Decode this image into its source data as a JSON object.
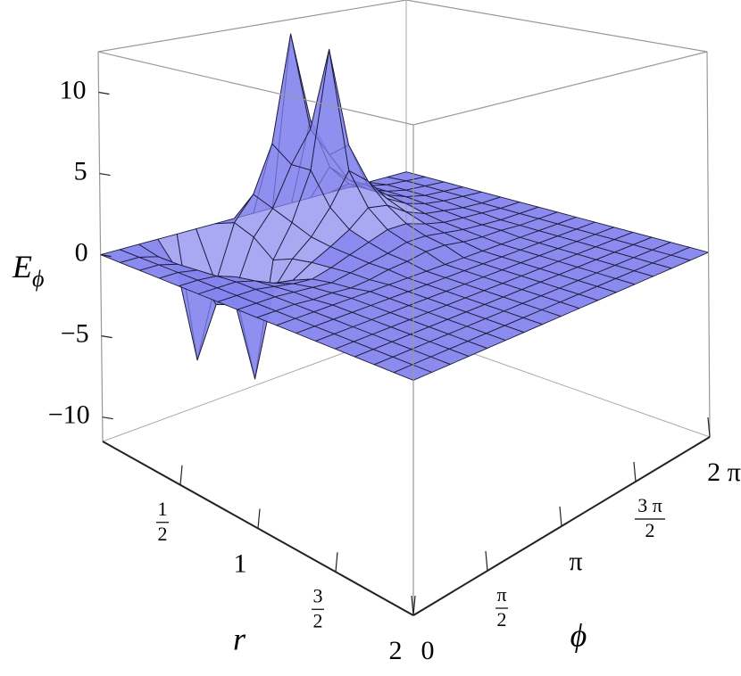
{
  "chart_data": {
    "type": "surface3d",
    "color": "#8585ee",
    "xlabel": "r",
    "ylabel": "ϕ",
    "zlabel": "Eϕ",
    "xlim": [
      0,
      2
    ],
    "ylim": [
      0,
      6.2832
    ],
    "zlim": [
      -11.5,
      12.5
    ],
    "xticks": [
      {
        "value": 0.5,
        "label": "1/2"
      },
      1,
      {
        "value": 1.5,
        "label": "3/2"
      },
      2
    ],
    "yticks": [
      0,
      {
        "value": 1.5708,
        "label": "π/2"
      },
      {
        "value": 3.1416,
        "label": "π"
      },
      {
        "value": 4.7124,
        "label": "3 π/2"
      },
      {
        "value": 6.2832,
        "label": "2 π"
      }
    ],
    "zticks": [
      {
        "value": -10,
        "label": "−10"
      },
      {
        "value": -5,
        "label": "−5"
      },
      0,
      5,
      10
    ],
    "x": [
      0,
      0.125,
      0.25,
      0.375,
      0.5,
      0.625,
      0.75,
      0.875,
      1,
      1.125,
      1.25,
      1.375,
      1.5,
      1.625,
      1.75,
      1.875,
      2
    ],
    "y": [
      0,
      0.3927,
      0.7854,
      1.1781,
      1.5708,
      1.9635,
      2.3562,
      2.7489,
      3.1416,
      3.5343,
      3.927,
      4.3197,
      4.7124,
      5.1051,
      5.4978,
      5.8905,
      6.2832
    ],
    "z": [
      [
        0,
        0,
        0,
        0,
        0,
        0,
        0,
        0,
        0,
        0,
        0,
        0,
        0,
        0,
        0,
        0,
        0
      ],
      [
        0,
        0,
        -0.3,
        -1.5,
        -7.5,
        -3,
        0.5,
        2,
        5,
        12,
        6,
        2.5,
        1,
        0.5,
        0.2,
        0.1,
        0
      ],
      [
        0,
        0,
        -0.3,
        -1.2,
        -3.5,
        -3,
        0,
        1.5,
        4,
        6,
        4,
        2,
        1,
        0.5,
        0.2,
        0.1,
        0
      ],
      [
        0,
        0,
        -0.2,
        -1,
        -3,
        -8,
        -1,
        1,
        4,
        11.5,
        5,
        2,
        1,
        0.5,
        0.2,
        0.1,
        0
      ],
      [
        0,
        0,
        -0.1,
        -0.5,
        -1.5,
        -2,
        -0.5,
        0.5,
        2,
        4,
        3,
        1.5,
        0.8,
        0.4,
        0.2,
        0.1,
        0
      ],
      [
        0,
        0,
        0,
        -0.3,
        -0.8,
        -1,
        -0.3,
        0.3,
        1,
        2,
        1.8,
        1,
        0.5,
        0.3,
        0.1,
        0,
        0
      ],
      [
        0,
        0,
        0,
        -0.2,
        -0.4,
        -0.5,
        -0.2,
        0.2,
        0.6,
        1,
        1,
        0.6,
        0.3,
        0.2,
        0.1,
        0,
        0
      ],
      [
        0,
        0,
        0,
        -0.1,
        -0.2,
        -0.3,
        -0.1,
        0.1,
        0.3,
        0.6,
        0.6,
        0.4,
        0.2,
        0.1,
        0,
        0,
        0
      ],
      [
        0,
        0,
        0,
        -0.1,
        -0.1,
        -0.2,
        -0.1,
        0.1,
        0.2,
        0.4,
        0.4,
        0.2,
        0.1,
        0.1,
        0,
        0,
        0
      ],
      [
        0,
        0,
        0,
        0,
        0,
        0,
        0,
        0,
        0,
        0,
        0,
        0,
        0,
        0,
        0,
        0,
        0
      ],
      [
        0,
        0,
        0,
        0,
        0,
        0,
        0,
        0,
        0,
        0,
        0,
        0,
        0,
        0,
        0,
        0,
        0
      ],
      [
        0,
        0,
        0,
        0,
        0,
        0,
        0,
        0,
        0,
        0,
        0,
        0,
        0,
        0,
        0,
        0,
        0
      ],
      [
        0,
        0,
        0,
        0,
        0,
        0,
        0,
        0,
        0,
        0,
        0,
        0,
        0,
        0,
        0,
        0,
        0
      ],
      [
        0,
        0,
        0,
        0,
        0,
        0,
        0,
        0,
        0,
        0,
        0,
        0,
        0,
        0,
        0,
        0,
        0
      ],
      [
        0,
        0,
        0,
        0,
        0,
        0,
        0,
        0,
        0,
        0,
        0,
        0,
        0,
        0,
        0,
        0,
        0
      ],
      [
        0,
        0,
        0,
        0,
        0,
        0,
        0,
        0,
        0,
        0,
        0,
        0,
        0,
        0,
        0,
        0,
        0
      ],
      [
        0,
        0,
        0,
        0,
        0,
        0,
        0,
        0,
        0,
        0,
        0,
        0,
        0,
        0,
        0,
        0,
        0
      ]
    ]
  }
}
